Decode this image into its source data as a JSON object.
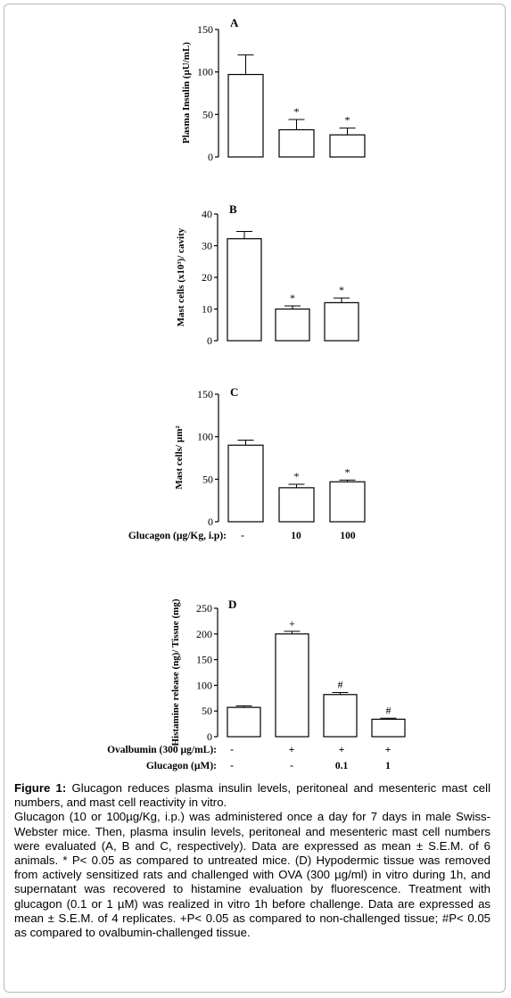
{
  "chart_data": [
    {
      "panel": "A",
      "type": "bar",
      "ylabel": "Plasma Insulin (µU/mL)",
      "ylim": [
        0,
        150
      ],
      "yticks": [
        0,
        50,
        100,
        150
      ],
      "values": [
        97,
        32,
        26
      ],
      "errors": [
        23,
        12,
        8
      ],
      "significance": [
        "",
        "*",
        "*"
      ]
    },
    {
      "panel": "B",
      "type": "bar",
      "ylabel": "Mast cells (x10³)/ cavity",
      "ylim": [
        0,
        40
      ],
      "yticks": [
        0,
        10,
        20,
        30,
        40
      ],
      "values": [
        32.2,
        10,
        12
      ],
      "errors": [
        2.3,
        1.0,
        1.5
      ],
      "significance": [
        "",
        "*",
        "*"
      ]
    },
    {
      "panel": "C",
      "type": "bar",
      "ylabel": "Mast cells/ µm²",
      "ylim": [
        0,
        150
      ],
      "yticks": [
        0,
        50,
        100,
        150
      ],
      "values": [
        90,
        40,
        47
      ],
      "errors": [
        6,
        4,
        2
      ],
      "significance": [
        "",
        "*",
        "*"
      ],
      "treatments": [
        {
          "label": "Glucagon (µg/Kg, i.p):",
          "values": [
            "-",
            "10",
            "100"
          ]
        }
      ]
    },
    {
      "panel": "D",
      "type": "bar",
      "ylabel": "Histamine release (ng)/ Tissue (mg)",
      "ylim": [
        0,
        250
      ],
      "yticks": [
        0,
        50,
        100,
        150,
        200,
        250
      ],
      "values": [
        57,
        200,
        82,
        34
      ],
      "errors": [
        3,
        5,
        4,
        2
      ],
      "significance": [
        "",
        "+",
        "#",
        "#"
      ],
      "treatments": [
        {
          "label": "Ovalbumin (300 µg/mL):",
          "values": [
            "-",
            "+",
            "+",
            "+"
          ]
        },
        {
          "label": "Glucagon (µM):",
          "values": [
            "-",
            "-",
            "0.1",
            "1"
          ]
        }
      ]
    }
  ],
  "caption": {
    "label": "Figure 1:",
    "title": "Glucagon reduces plasma insulin levels, peritoneal and mesenteric mast cell numbers, and mast cell reactivity in vitro.",
    "body": "Glucagon (10 or 100µg/Kg, i.p.) was administered once a day for 7 days in male Swiss-Webster mice. Then, plasma insulin levels, peritoneal and mesenteric mast cell numbers were evaluated (A, B and C, respectively). Data are expressed as mean ± S.E.M. of 6 animals. * P< 0.05 as compared to untreated mice. (D) Hypodermic tissue was removed from actively sensitized rats and challenged with OVA (300 µg/ml) in vitro during 1h, and supernatant was recovered to histamine evaluation by fluorescence. Treatment with glucagon (0.1 or 1 µM) was realized in vitro 1h before challenge. Data are expressed as mean ± S.E.M. of 4 replicates. +P< 0.05 as compared to non-challenged tissue; #P< 0.05 as compared to ovalbumin-challenged tissue."
  }
}
